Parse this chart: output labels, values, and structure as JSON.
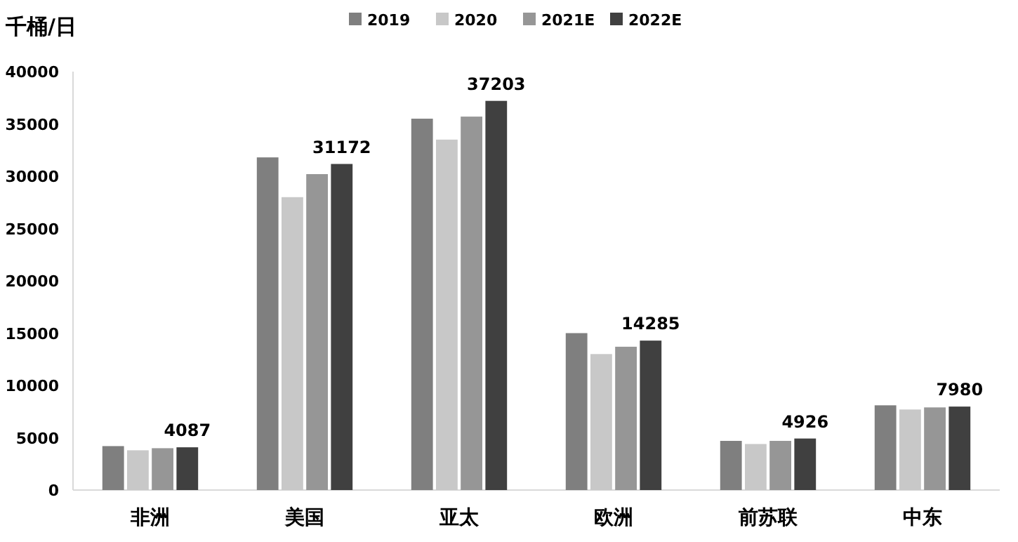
{
  "chart_data": {
    "type": "bar",
    "ylabel": "千桶/日",
    "categories": [
      "非洲",
      "美国",
      "亚太",
      "欧洲",
      "前苏联",
      "中东"
    ],
    "series": [
      {
        "name": "2019",
        "color": "#7f7f7f",
        "values": [
          4200,
          31800,
          35500,
          15000,
          4700,
          8100
        ]
      },
      {
        "name": "2020",
        "color": "#c8c8c8",
        "values": [
          3800,
          28000,
          33500,
          13000,
          4400,
          7700
        ]
      },
      {
        "name": "2021E",
        "color": "#969696",
        "values": [
          4000,
          30200,
          35700,
          13700,
          4700,
          7900
        ]
      },
      {
        "name": "2022E",
        "color": "#404040",
        "values": [
          4087,
          31172,
          37203,
          14285,
          4926,
          7980
        ],
        "value_labels": [
          "4087",
          "31172",
          "37203",
          "14285",
          "4926",
          "7980"
        ]
      }
    ],
    "ylim": [
      0,
      40000
    ],
    "yticks": [
      0,
      5000,
      10000,
      15000,
      20000,
      25000,
      30000,
      35000,
      40000
    ],
    "legend": "top",
    "grid": false
  }
}
